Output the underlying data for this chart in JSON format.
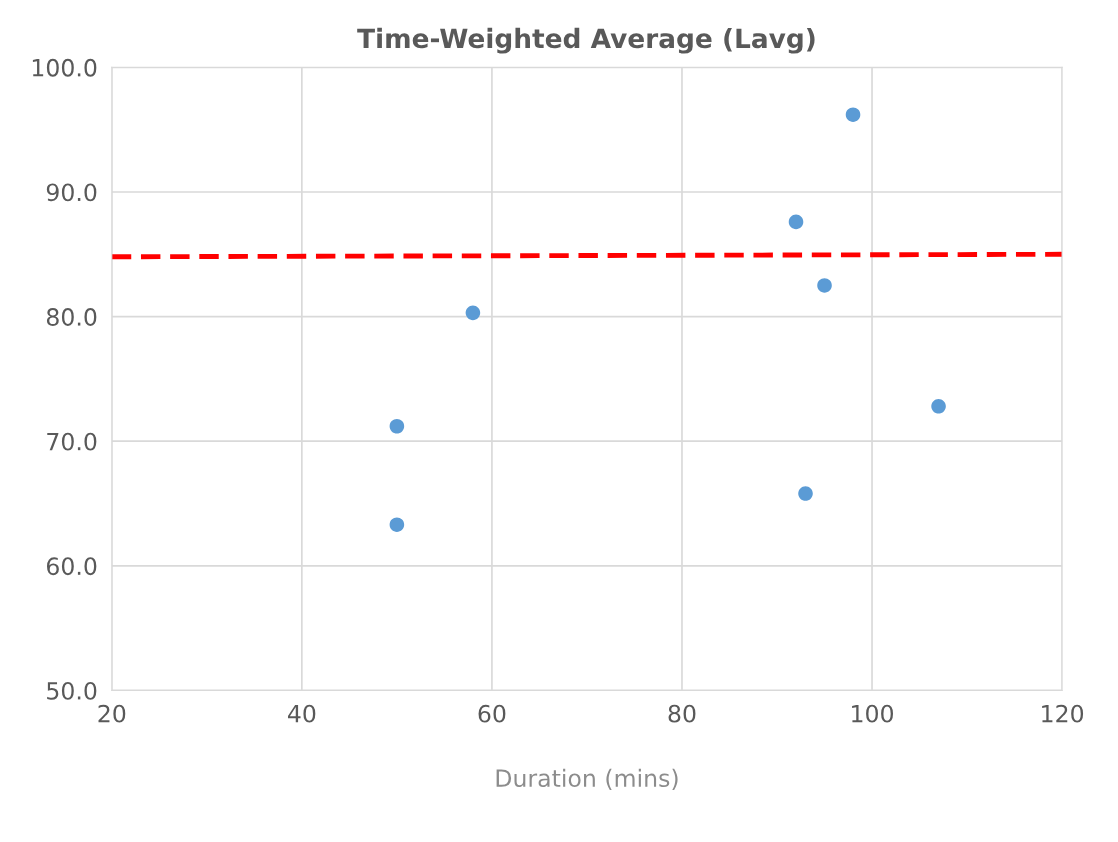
{
  "chart_data": {
    "type": "scatter",
    "title": "Time-Weighted Average (Lavg)",
    "xlabel": "Duration (mins)",
    "xlim": [
      20,
      120
    ],
    "xticks": [
      20,
      40,
      60,
      80,
      100,
      120
    ],
    "ylim": [
      50,
      100
    ],
    "yticks": [
      {
        "value": 50,
        "label": "50.0"
      },
      {
        "value": 60,
        "label": "60.0"
      },
      {
        "value": 70,
        "label": "70.0"
      },
      {
        "value": 80,
        "label": "80.0"
      },
      {
        "value": 90,
        "label": "90.0"
      },
      {
        "value": 100,
        "label": "100.0"
      }
    ],
    "grid": true,
    "marker": "circle",
    "series": [
      {
        "color": "#5b9bd5",
        "x": [
          50,
          50,
          58,
          92,
          98,
          95,
          93,
          107
        ],
        "values": [
          71.2,
          63.3,
          80.3,
          87.6,
          96.2,
          82.5,
          65.8,
          72.8
        ]
      },
      {
        "type": "line",
        "color": "#ff0000",
        "line_style": "dashed",
        "marker": "none",
        "x": [
          20,
          120
        ],
        "values": [
          84.8,
          85.0
        ]
      }
    ]
  }
}
